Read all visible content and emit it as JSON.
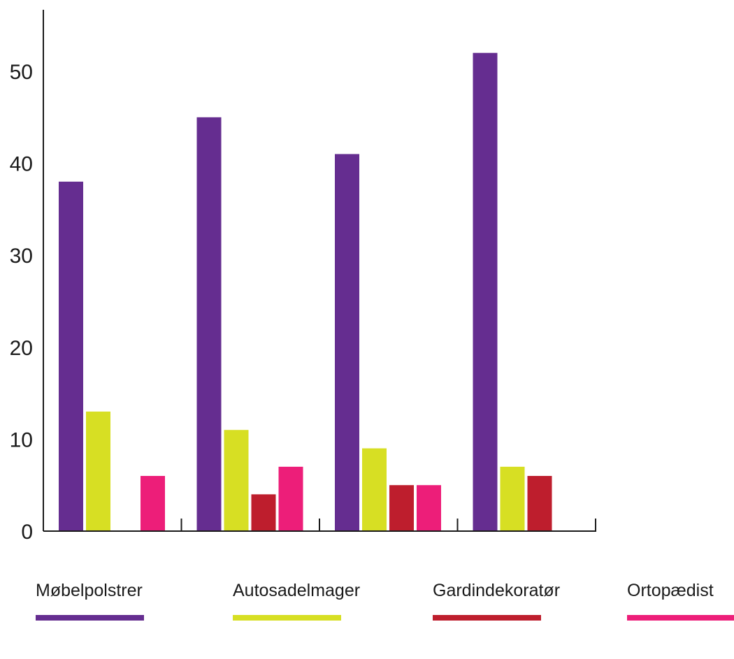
{
  "chart_data": {
    "type": "bar",
    "categories": [
      "",
      "",
      "",
      ""
    ],
    "series": [
      {
        "name": "Møbelpolstrer",
        "color": "#652d90",
        "values": [
          38,
          45,
          41,
          52
        ]
      },
      {
        "name": "Autosadelmager",
        "color": "#d7df23",
        "values": [
          13,
          11,
          9,
          7
        ]
      },
      {
        "name": "Gardindekoratør",
        "color": "#be1e2d",
        "values": [
          0,
          4,
          5,
          6
        ]
      },
      {
        "name": "Ortopædist",
        "color": "#ed1e79",
        "values": [
          6,
          7,
          5,
          0
        ]
      }
    ],
    "y_ticks": [
      0,
      10,
      20,
      30,
      40,
      50
    ],
    "ylim": [
      0,
      56
    ],
    "title": "",
    "xlabel": "",
    "ylabel": "",
    "grid": false,
    "legend_placement": "bottom"
  }
}
